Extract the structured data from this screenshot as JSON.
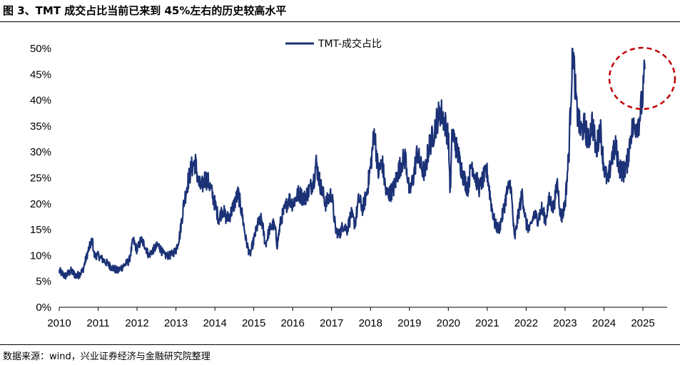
{
  "figure": {
    "title": "图 3、TMT 成交占比当前已来到 45%左右的历史较高水平",
    "source": "数据来源：wind，兴业证券经济与金融研究院整理"
  },
  "colors": {
    "series": "#1c3277",
    "highlight": "#c00000",
    "axis": "#000000"
  },
  "chart_data": {
    "type": "line",
    "title": "",
    "xlabel": "",
    "ylabel": "",
    "ylim": [
      0,
      50
    ],
    "xlim": [
      2010,
      2025.35
    ],
    "y_ticks": [
      "0%",
      "5%",
      "10%",
      "15%",
      "20%",
      "25%",
      "30%",
      "35%",
      "40%",
      "45%",
      "50%"
    ],
    "x_ticks": [
      "2010",
      "2011",
      "2012",
      "2013",
      "2014",
      "2015",
      "2016",
      "2017",
      "2018",
      "2019",
      "2020",
      "2021",
      "2022",
      "2023",
      "2024",
      "2025"
    ],
    "legend": "top-center",
    "annotation": "dashed red circle highlighting the recent peak near 45%",
    "series": [
      {
        "name": "TMT-成交占比",
        "x": [
          2010.0,
          2010.15,
          2010.3,
          2010.45,
          2010.6,
          2010.75,
          2010.85,
          2010.9,
          2011.0,
          2011.15,
          2011.3,
          2011.5,
          2011.65,
          2011.8,
          2011.9,
          2012.0,
          2012.1,
          2012.2,
          2012.3,
          2012.4,
          2012.55,
          2012.7,
          2012.85,
          2013.0,
          2013.1,
          2013.2,
          2013.3,
          2013.4,
          2013.5,
          2013.58,
          2013.65,
          2013.75,
          2013.85,
          2014.0,
          2014.1,
          2014.2,
          2014.3,
          2014.4,
          2014.5,
          2014.6,
          2014.7,
          2014.8,
          2014.9,
          2015.0,
          2015.1,
          2015.2,
          2015.3,
          2015.4,
          2015.5,
          2015.55,
          2015.6,
          2015.7,
          2015.8,
          2015.9,
          2016.0,
          2016.15,
          2016.3,
          2016.45,
          2016.55,
          2016.6,
          2016.7,
          2016.85,
          2017.0,
          2017.1,
          2017.2,
          2017.3,
          2017.4,
          2017.5,
          2017.6,
          2017.7,
          2017.8,
          2017.9,
          2018.0,
          2018.1,
          2018.2,
          2018.3,
          2018.4,
          2018.5,
          2018.6,
          2018.7,
          2018.8,
          2018.9,
          2019.0,
          2019.1,
          2019.2,
          2019.3,
          2019.4,
          2019.5,
          2019.6,
          2019.7,
          2019.8,
          2019.9,
          2020.0,
          2020.05,
          2020.1,
          2020.2,
          2020.3,
          2020.4,
          2020.5,
          2020.6,
          2020.7,
          2020.8,
          2020.9,
          2021.0,
          2021.1,
          2021.2,
          2021.3,
          2021.4,
          2021.5,
          2021.6,
          2021.7,
          2021.8,
          2021.9,
          2022.0,
          2022.1,
          2022.2,
          2022.3,
          2022.4,
          2022.5,
          2022.6,
          2022.7,
          2022.8,
          2022.9,
          2023.0,
          2023.1,
          2023.15,
          2023.2,
          2023.25,
          2023.3,
          2023.4,
          2023.5,
          2023.6,
          2023.7,
          2023.8,
          2023.9,
          2024.0,
          2024.1,
          2024.2,
          2024.3,
          2024.4,
          2024.5,
          2024.6,
          2024.7,
          2024.8,
          2024.9,
          2025.0,
          2025.05
        ],
        "values": [
          7,
          6,
          7,
          6,
          7,
          11,
          13,
          10,
          10,
          9,
          8,
          7,
          8,
          9,
          13,
          11,
          13,
          12,
          10,
          11,
          12,
          10,
          10,
          11,
          14,
          20,
          24,
          27,
          28,
          24,
          23,
          25,
          24,
          20,
          17,
          19,
          17,
          18,
          20,
          22,
          18,
          13,
          10,
          13,
          16,
          17,
          12,
          15,
          16,
          15,
          12,
          17,
          19,
          21,
          20,
          22,
          21,
          23,
          25,
          28,
          24,
          20,
          22,
          15,
          14,
          16,
          15,
          18,
          16,
          21,
          19,
          22,
          27,
          34,
          26,
          28,
          22,
          22,
          23,
          26,
          28,
          29,
          22,
          25,
          30,
          27,
          26,
          31,
          33,
          36,
          38,
          36,
          33,
          22,
          34,
          31,
          28,
          25,
          23,
          28,
          25,
          23,
          25,
          26,
          20,
          16,
          15,
          18,
          22,
          24,
          13,
          18,
          22,
          16,
          15,
          18,
          17,
          19,
          17,
          21,
          19,
          24,
          17,
          20,
          30,
          41,
          50,
          44,
          38,
          34,
          35,
          32,
          36,
          30,
          35,
          27,
          24,
          29,
          31,
          27,
          26,
          28,
          34,
          35,
          36,
          41,
          46
        ]
      }
    ]
  }
}
